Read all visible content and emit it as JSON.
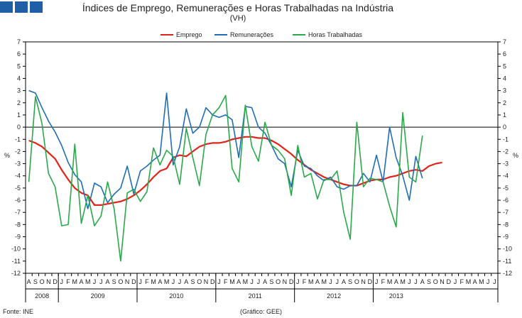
{
  "header": {
    "title": "Índices de Emprego, Remunerações e Horas Trabalhadas na Indústria",
    "subtitle": "(VH)"
  },
  "footer": {
    "source": "Fonte: INE",
    "credit": "(Gráfico: GEE)"
  },
  "chart_data": {
    "type": "line",
    "title": "Índices de Emprego, Remunerações e Horas Trabalhadas na Indústria",
    "subtitle": "(VH)",
    "ylabel_left": "%",
    "ylabel_right": "%",
    "ylim": [
      -12,
      7
    ],
    "yticks": [
      7,
      6,
      5,
      4,
      3,
      2,
      1,
      0,
      -1,
      -2,
      -3,
      -4,
      -5,
      -6,
      -7,
      -8,
      -9,
      -10,
      -11,
      -12
    ],
    "legend_position": "top-center",
    "month_labels": [
      "A",
      "S",
      "O",
      "N",
      "D",
      "J",
      "F",
      "M",
      "A",
      "M",
      "J",
      "J",
      "A",
      "S",
      "O",
      "N",
      "D",
      "J",
      "F",
      "M",
      "A",
      "M",
      "J",
      "J",
      "A",
      "S",
      "O",
      "N",
      "D",
      "J",
      "F",
      "M",
      "A",
      "M",
      "J",
      "J",
      "A",
      "S",
      "O",
      "N",
      "D",
      "J",
      "F",
      "M",
      "A",
      "M",
      "J",
      "J",
      "A",
      "S",
      "O",
      "N",
      "D",
      "J",
      "F",
      "M",
      "A",
      "M",
      "J",
      "J",
      "A",
      "S",
      "O",
      "N",
      "D",
      "J",
      "F",
      "M",
      "A",
      "M",
      "J",
      "J"
    ],
    "year_groups": [
      {
        "label": "2008",
        "start": 0,
        "count": 5
      },
      {
        "label": "2009",
        "start": 5,
        "count": 12
      },
      {
        "label": "2010",
        "start": 17,
        "count": 12
      },
      {
        "label": "2011",
        "start": 29,
        "count": 12
      },
      {
        "label": "2012",
        "start": 41,
        "count": 12
      },
      {
        "label": "2013",
        "start": 53,
        "count": 7
      }
    ],
    "series": [
      {
        "name": "Emprego",
        "color": "#e2231a",
        "values": [
          -1.1,
          -1.3,
          -1.6,
          -2.1,
          -2.6,
          -3.5,
          -4.3,
          -5.0,
          -5.4,
          -5.6,
          -6.4,
          -6.4,
          -6.3,
          -6.2,
          -6.1,
          -5.9,
          -5.6,
          -5.2,
          -4.7,
          -4.1,
          -3.6,
          -3.4,
          -2.5,
          -2.3,
          -2.4,
          -2.0,
          -1.6,
          -1.4,
          -1.3,
          -1.3,
          -1.2,
          -1.0,
          -0.9,
          -0.8,
          -0.8,
          -0.9,
          -0.9,
          -1.1,
          -1.4,
          -1.8,
          -2.2,
          -2.7,
          -3.1,
          -3.5,
          -3.8,
          -4.1,
          -4.3,
          -4.5,
          -4.7,
          -4.8,
          -4.8,
          -4.6,
          -4.4,
          -4.3,
          -4.3,
          -4.1,
          -4.0,
          -3.8,
          -3.6,
          -3.5,
          -3.6,
          -3.2,
          -3.0,
          -2.9
        ]
      },
      {
        "name": "Remunerações",
        "color": "#1f6db5",
        "values": [
          3.0,
          2.8,
          1.6,
          0.5,
          -0.4,
          -1.5,
          -2.9,
          -3.9,
          -4.5,
          -6.7,
          -4.6,
          -4.9,
          -6.2,
          -5.5,
          -5.0,
          -3.2,
          -5.5,
          -3.6,
          -3.2,
          -2.7,
          -2.3,
          2.8,
          -3.1,
          -1.6,
          1.5,
          -0.5,
          0.0,
          1.6,
          1.0,
          0.8,
          1.0,
          0.6,
          -2.5,
          1.7,
          1.6,
          0.0,
          -0.5,
          -1.5,
          -2.6,
          -3.0,
          -4.9,
          -1.9,
          -3.2,
          -3.4,
          -4.0,
          -4.4,
          -4.1,
          -4.9,
          -5.1,
          -4.8,
          -4.8,
          -3.8,
          -4.5,
          -2.3,
          -4.5,
          0.0,
          -2.5,
          -4.0,
          -6.0,
          -2.4,
          -4.2
        ]
      },
      {
        "name": "Horas Trabalhadas",
        "color": "#2aa84a",
        "values": [
          -4.5,
          2.5,
          0.3,
          -3.8,
          -4.9,
          -8.1,
          -8.0,
          -1.4,
          -7.9,
          -5.6,
          -8.1,
          -7.3,
          -4.5,
          -6.7,
          -11.0,
          -5.4,
          -5.1,
          -6.1,
          -5.3,
          -1.7,
          -3.1,
          -1.9,
          -2.4,
          -4.7,
          -0.1,
          -2.5,
          -4.8,
          -0.6,
          1.0,
          1.6,
          2.6,
          -3.4,
          -4.5,
          1.8,
          -1.6,
          -2.8,
          0.4,
          -1.5,
          -1.9,
          -2.6,
          -5.6,
          -1.5,
          -4.1,
          -3.8,
          -5.9,
          -4.3,
          -4.3,
          -3.6,
          -7.0,
          -9.2,
          0.4,
          -4.9,
          -4.2,
          -4.3,
          -4.5,
          -6.5,
          -8.2,
          1.2,
          -4.1,
          -4.5,
          -0.7
        ]
      }
    ]
  }
}
